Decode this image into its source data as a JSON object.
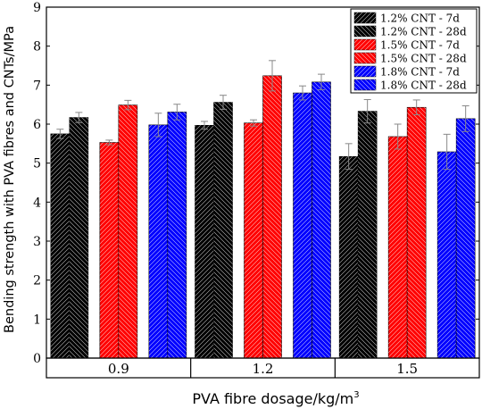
{
  "chart_data": {
    "type": "bar",
    "xlabel": "PVA fibre dosage/kg/m",
    "xlabel_sup": "3",
    "ylabel": "Bending strength with PVA fibres and CNTs/MPa",
    "ylim": [
      0,
      9
    ],
    "yticks": [
      0,
      1,
      2,
      3,
      4,
      5,
      6,
      7,
      8,
      9
    ],
    "categories": [
      "0.9",
      "1.2",
      "1.5"
    ],
    "legend_position": "top-right",
    "series": [
      {
        "name": "1.2% CNT - 7d",
        "color": "#000000",
        "values": [
          5.75,
          5.97,
          5.17
        ],
        "errors": [
          0.12,
          0.1,
          0.33
        ]
      },
      {
        "name": "1.2% CNT - 28d",
        "color": "#000000",
        "values": [
          6.17,
          6.56,
          6.33
        ],
        "errors": [
          0.13,
          0.18,
          0.3
        ]
      },
      {
        "name": "1.5% CNT - 7d",
        "color": "#ff0000",
        "values": [
          5.53,
          6.03,
          5.68
        ],
        "errors": [
          0.06,
          0.08,
          0.32
        ]
      },
      {
        "name": "1.5% CNT - 28d",
        "color": "#ff0000",
        "values": [
          6.49,
          7.24,
          6.43
        ],
        "errors": [
          0.12,
          0.39,
          0.19
        ]
      },
      {
        "name": "1.8% CNT - 7d",
        "color": "#0000ff",
        "values": [
          5.98,
          6.8,
          5.29
        ],
        "errors": [
          0.3,
          0.18,
          0.45
        ]
      },
      {
        "name": "1.8% CNT - 28d",
        "color": "#0000ff",
        "values": [
          6.31,
          7.08,
          6.14
        ],
        "errors": [
          0.2,
          0.2,
          0.33
        ]
      }
    ]
  }
}
